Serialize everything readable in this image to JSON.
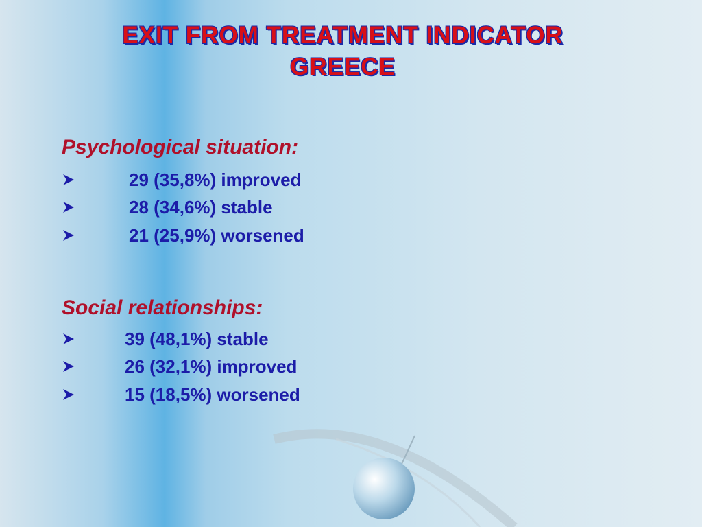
{
  "title": {
    "line1": "EXIT FROM TREATMENT INDICATOR",
    "line2": "GREECE"
  },
  "sections": [
    {
      "heading": "Psychological situation:",
      "items": [
        "29 (35,8%) improved",
        "28 (34,6%) stable",
        "21 (25,9%) worsened"
      ]
    },
    {
      "heading": "Social relationships:",
      "items": [
        "39 (48,1%) stable",
        "26 (32,1%) improved",
        "15 (18,5%) worsened"
      ]
    }
  ]
}
